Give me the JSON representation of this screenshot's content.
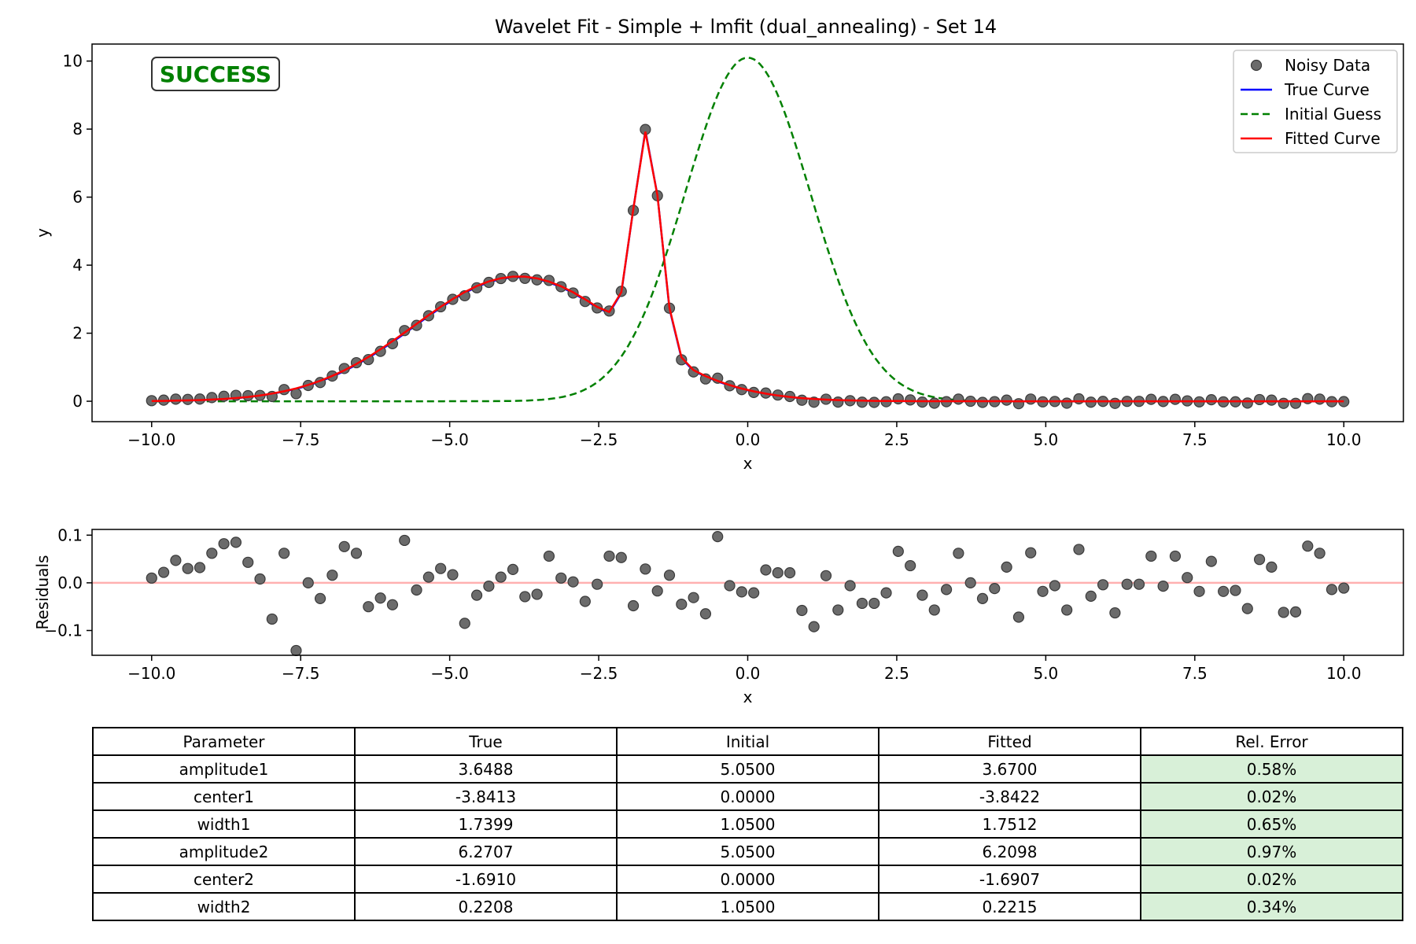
{
  "badge": {
    "text": "SUCCESS",
    "color": "#008000"
  },
  "chart_data": [
    {
      "type": "line",
      "title": "Wavelet Fit - Simple + lmfit (dual_annealing) - Set 14",
      "xlabel": "x",
      "ylabel": "y",
      "xlim": [
        -11,
        11
      ],
      "ylim": [
        -0.6,
        10.5
      ],
      "xticks": [
        -10,
        -7.5,
        -5,
        -2.5,
        0,
        2.5,
        5,
        7.5,
        10
      ],
      "xtick_labels": [
        "−10.0",
        "−7.5",
        "−5.0",
        "−2.5",
        "0.0",
        "2.5",
        "5.0",
        "7.5",
        "10.0"
      ],
      "yticks": [
        0,
        2,
        4,
        6,
        8,
        10
      ],
      "ytick_labels": [
        "0",
        "2",
        "4",
        "6",
        "8",
        "10"
      ],
      "legend_position": "top-right",
      "legend": [
        {
          "label": "Noisy Data",
          "style": "marker",
          "color": "#555555"
        },
        {
          "label": "True Curve",
          "style": "solid",
          "color": "#0000ff"
        },
        {
          "label": "Initial Guess",
          "style": "dashed",
          "color": "#008000"
        },
        {
          "label": "Fitted Curve",
          "style": "solid",
          "color": "#ff0000"
        }
      ],
      "model": "sum of two gaussians",
      "series": [
        {
          "name": "True Curve",
          "color": "#0000ff",
          "params": {
            "amplitude1": 3.6488,
            "center1": -3.8413,
            "width1": 1.7399,
            "amplitude2": 6.2707,
            "center2": -1.691,
            "width2": 0.2208
          }
        },
        {
          "name": "Initial Guess",
          "color": "#008000",
          "params": {
            "amplitude1": 5.05,
            "center1": 0.0,
            "width1": 1.05,
            "amplitude2": 5.05,
            "center2": 0.0,
            "width2": 1.05
          }
        },
        {
          "name": "Fitted Curve",
          "color": "#ff0000",
          "params": {
            "amplitude1": 3.67,
            "center1": -3.8422,
            "width1": 1.7512,
            "amplitude2": 6.2098,
            "center2": -1.6907,
            "width2": 0.2215
          }
        }
      ],
      "scatter": {
        "name": "Noisy Data",
        "x_range": [
          -10,
          10
        ],
        "count": 100
      }
    },
    {
      "type": "scatter",
      "xlabel": "x",
      "ylabel": "Residuals",
      "xlim": [
        -11,
        11
      ],
      "ylim": [
        -0.152,
        0.112
      ],
      "xticks": [
        -10,
        -7.5,
        -5,
        -2.5,
        0,
        2.5,
        5,
        7.5,
        10
      ],
      "xtick_labels": [
        "−10.0",
        "−7.5",
        "−5.0",
        "−2.5",
        "0.0",
        "2.5",
        "5.0",
        "7.5",
        "10.0"
      ],
      "yticks": [
        -0.1,
        0,
        0.1
      ],
      "ytick_labels": [
        "−0.1",
        "0.0",
        "0.1"
      ],
      "zero_line_color": "#ffb0b0",
      "x_range": [
        -10,
        10
      ],
      "residuals": [
        0.01,
        0.022,
        0.047,
        0.03,
        0.032,
        0.062,
        0.082,
        0.085,
        0.043,
        0.008,
        -0.076,
        0.062,
        -0.142,
        0.0,
        -0.033,
        0.016,
        0.076,
        0.062,
        -0.05,
        -0.032,
        -0.046,
        0.089,
        -0.015,
        0.012,
        0.03,
        0.017,
        -0.085,
        -0.026,
        -0.007,
        0.012,
        0.028,
        -0.029,
        -0.024,
        0.056,
        0.01,
        0.002,
        -0.039,
        -0.003,
        0.056,
        0.053,
        -0.048,
        0.029,
        -0.017,
        0.016,
        -0.045,
        -0.031,
        -0.065,
        0.097,
        -0.006,
        -0.019,
        -0.021,
        0.027,
        0.021,
        0.021,
        -0.058,
        -0.092,
        0.015,
        -0.057,
        -0.006,
        -0.043,
        -0.043,
        -0.021,
        0.066,
        0.036,
        -0.026,
        -0.057,
        -0.014,
        0.062,
        0.0,
        -0.033,
        -0.012,
        0.033,
        -0.072,
        0.063,
        -0.018,
        -0.006,
        -0.057,
        0.07,
        -0.028,
        -0.004,
        -0.063,
        -0.003,
        -0.003,
        0.056,
        -0.007,
        0.056,
        0.011,
        -0.018,
        0.045,
        -0.018,
        -0.016,
        -0.054,
        0.049,
        0.033,
        -0.062,
        -0.061,
        0.077,
        0.062,
        -0.014,
        -0.011
      ]
    }
  ],
  "table": {
    "headers": [
      "Parameter",
      "True",
      "Initial",
      "Fitted",
      "Rel. Error"
    ],
    "rows": [
      [
        "amplitude1",
        "3.6488",
        "5.0500",
        "3.6700",
        "0.58%"
      ],
      [
        "center1",
        "-3.8413",
        "0.0000",
        "-3.8422",
        "0.02%"
      ],
      [
        "width1",
        "1.7399",
        "1.0500",
        "1.7512",
        "0.65%"
      ],
      [
        "amplitude2",
        "6.2707",
        "5.0500",
        "6.2098",
        "0.97%"
      ],
      [
        "center2",
        "-1.6910",
        "0.0000",
        "-1.6907",
        "0.02%"
      ],
      [
        "width2",
        "0.2208",
        "1.0500",
        "0.2215",
        "0.34%"
      ]
    ],
    "good_color": "#d8f0d8"
  }
}
